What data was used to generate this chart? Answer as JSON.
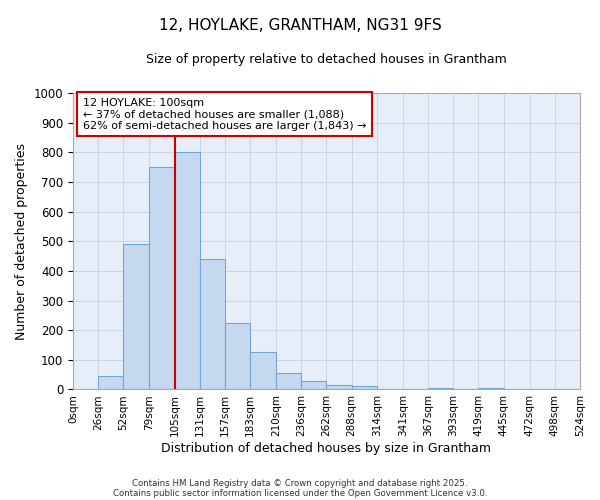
{
  "title": "12, HOYLAKE, GRANTHAM, NG31 9FS",
  "subtitle": "Size of property relative to detached houses in Grantham",
  "xlabel": "Distribution of detached houses by size in Grantham",
  "ylabel": "Number of detached properties",
  "bar_left_edges": [
    0,
    26,
    52,
    79,
    105,
    131,
    157,
    183,
    210,
    236,
    262,
    288,
    314,
    341,
    367,
    393,
    419,
    445,
    472,
    498
  ],
  "bar_widths": [
    26,
    26,
    27,
    26,
    26,
    26,
    26,
    27,
    26,
    26,
    26,
    26,
    27,
    26,
    26,
    26,
    26,
    27,
    26,
    26
  ],
  "bar_heights": [
    0,
    45,
    490,
    750,
    800,
    440,
    225,
    128,
    55,
    30,
    15,
    10,
    0,
    0,
    5,
    0,
    5,
    0,
    0,
    0
  ],
  "bar_color": "#c5d8f0",
  "bar_edgecolor": "#6fa8d8",
  "xlim": [
    0,
    524
  ],
  "ylim": [
    0,
    1000
  ],
  "yticks": [
    0,
    100,
    200,
    300,
    400,
    500,
    600,
    700,
    800,
    900,
    1000
  ],
  "xtick_labels": [
    "0sqm",
    "26sqm",
    "52sqm",
    "79sqm",
    "105sqm",
    "131sqm",
    "157sqm",
    "183sqm",
    "210sqm",
    "236sqm",
    "262sqm",
    "288sqm",
    "314sqm",
    "341sqm",
    "367sqm",
    "393sqm",
    "419sqm",
    "445sqm",
    "472sqm",
    "498sqm",
    "524sqm"
  ],
  "xtick_positions": [
    0,
    26,
    52,
    79,
    105,
    131,
    157,
    183,
    210,
    236,
    262,
    288,
    314,
    341,
    367,
    393,
    419,
    445,
    472,
    498,
    524
  ],
  "vline_x": 105,
  "vline_color": "#cc0000",
  "annotation_title": "12 HOYLAKE: 100sqm",
  "annotation_line1": "← 37% of detached houses are smaller (1,088)",
  "annotation_line2": "62% of semi-detached houses are larger (1,843) →",
  "annotation_box_color": "#ffffff",
  "annotation_box_edgecolor": "#cc0000",
  "grid_color": "#c8d4e8",
  "background_color": "#e8eef7",
  "title_fontsize": 11,
  "title_fontweight": "normal",
  "subtitle_fontsize": 9,
  "footer_line1": "Contains HM Land Registry data © Crown copyright and database right 2025.",
  "footer_line2": "Contains public sector information licensed under the Open Government Licence v3.0."
}
